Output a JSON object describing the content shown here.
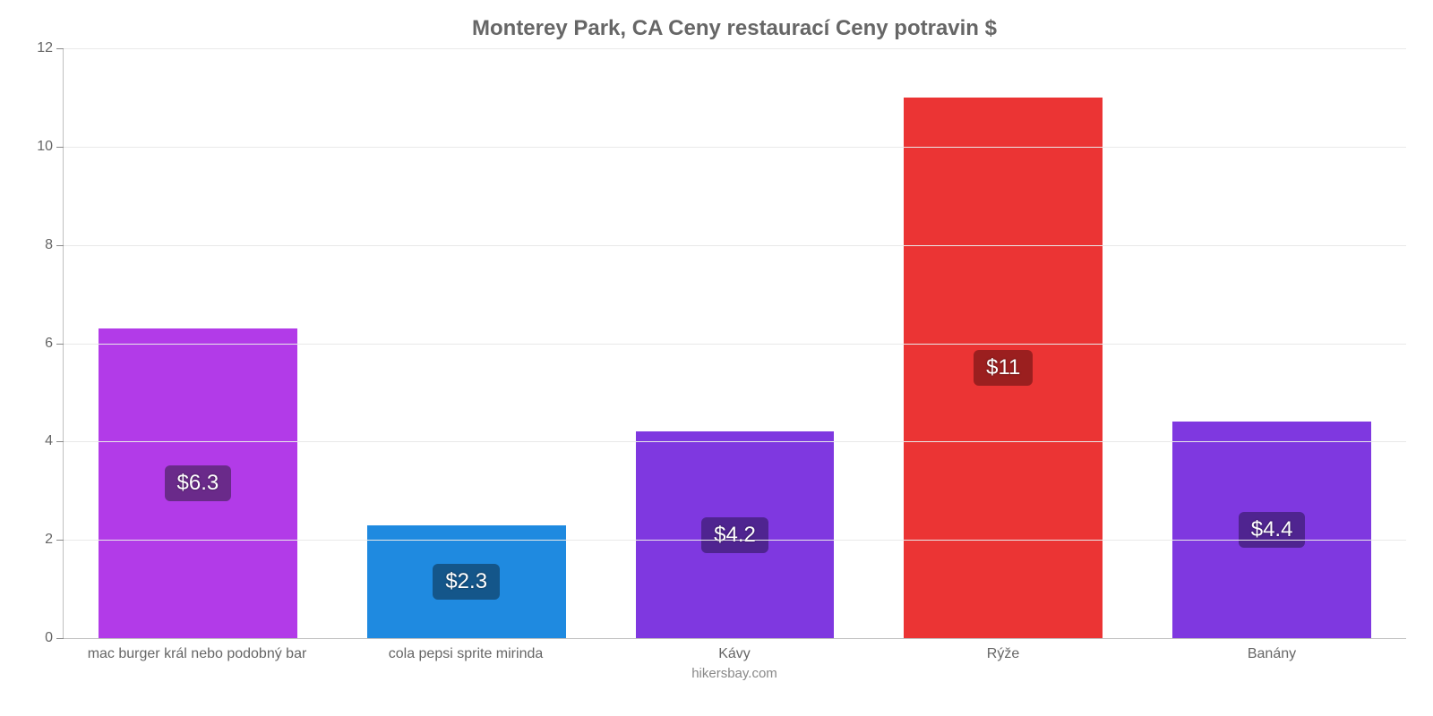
{
  "chart": {
    "type": "bar",
    "title": "Monterey Park, CA Ceny restaurací Ceny potravin $",
    "title_fontsize": 24,
    "title_color": "#666666",
    "attribution": "hikersbay.com",
    "background_color": "#ffffff",
    "grid_color": "#e9e9e9",
    "axis_color": "#c0c0c0",
    "tick_color": "#666666",
    "label_fontsize": 16,
    "value_fontsize": 24,
    "ylim": [
      0,
      12
    ],
    "ytick_step": 2,
    "yticks": [
      0,
      2,
      4,
      6,
      8,
      10,
      12
    ],
    "bar_width": 0.74,
    "categories": [
      "mac burger král nebo podobný bar",
      "cola pepsi sprite mirinda",
      "Kávy",
      "Rýže",
      "Banány"
    ],
    "values": [
      6.3,
      2.3,
      4.2,
      11,
      4.4
    ],
    "value_labels": [
      "$6.3",
      "$2.3",
      "$4.2",
      "$11",
      "$4.4"
    ],
    "bar_colors": [
      "#b23be8",
      "#1f8ae0",
      "#7f38e0",
      "#eb3434",
      "#7f38e0"
    ],
    "badge_colors": [
      "#6a2a8a",
      "#14568a",
      "#4f2490",
      "#9b1f1f",
      "#4f2490"
    ],
    "badge_text_color": "#ffffff"
  }
}
